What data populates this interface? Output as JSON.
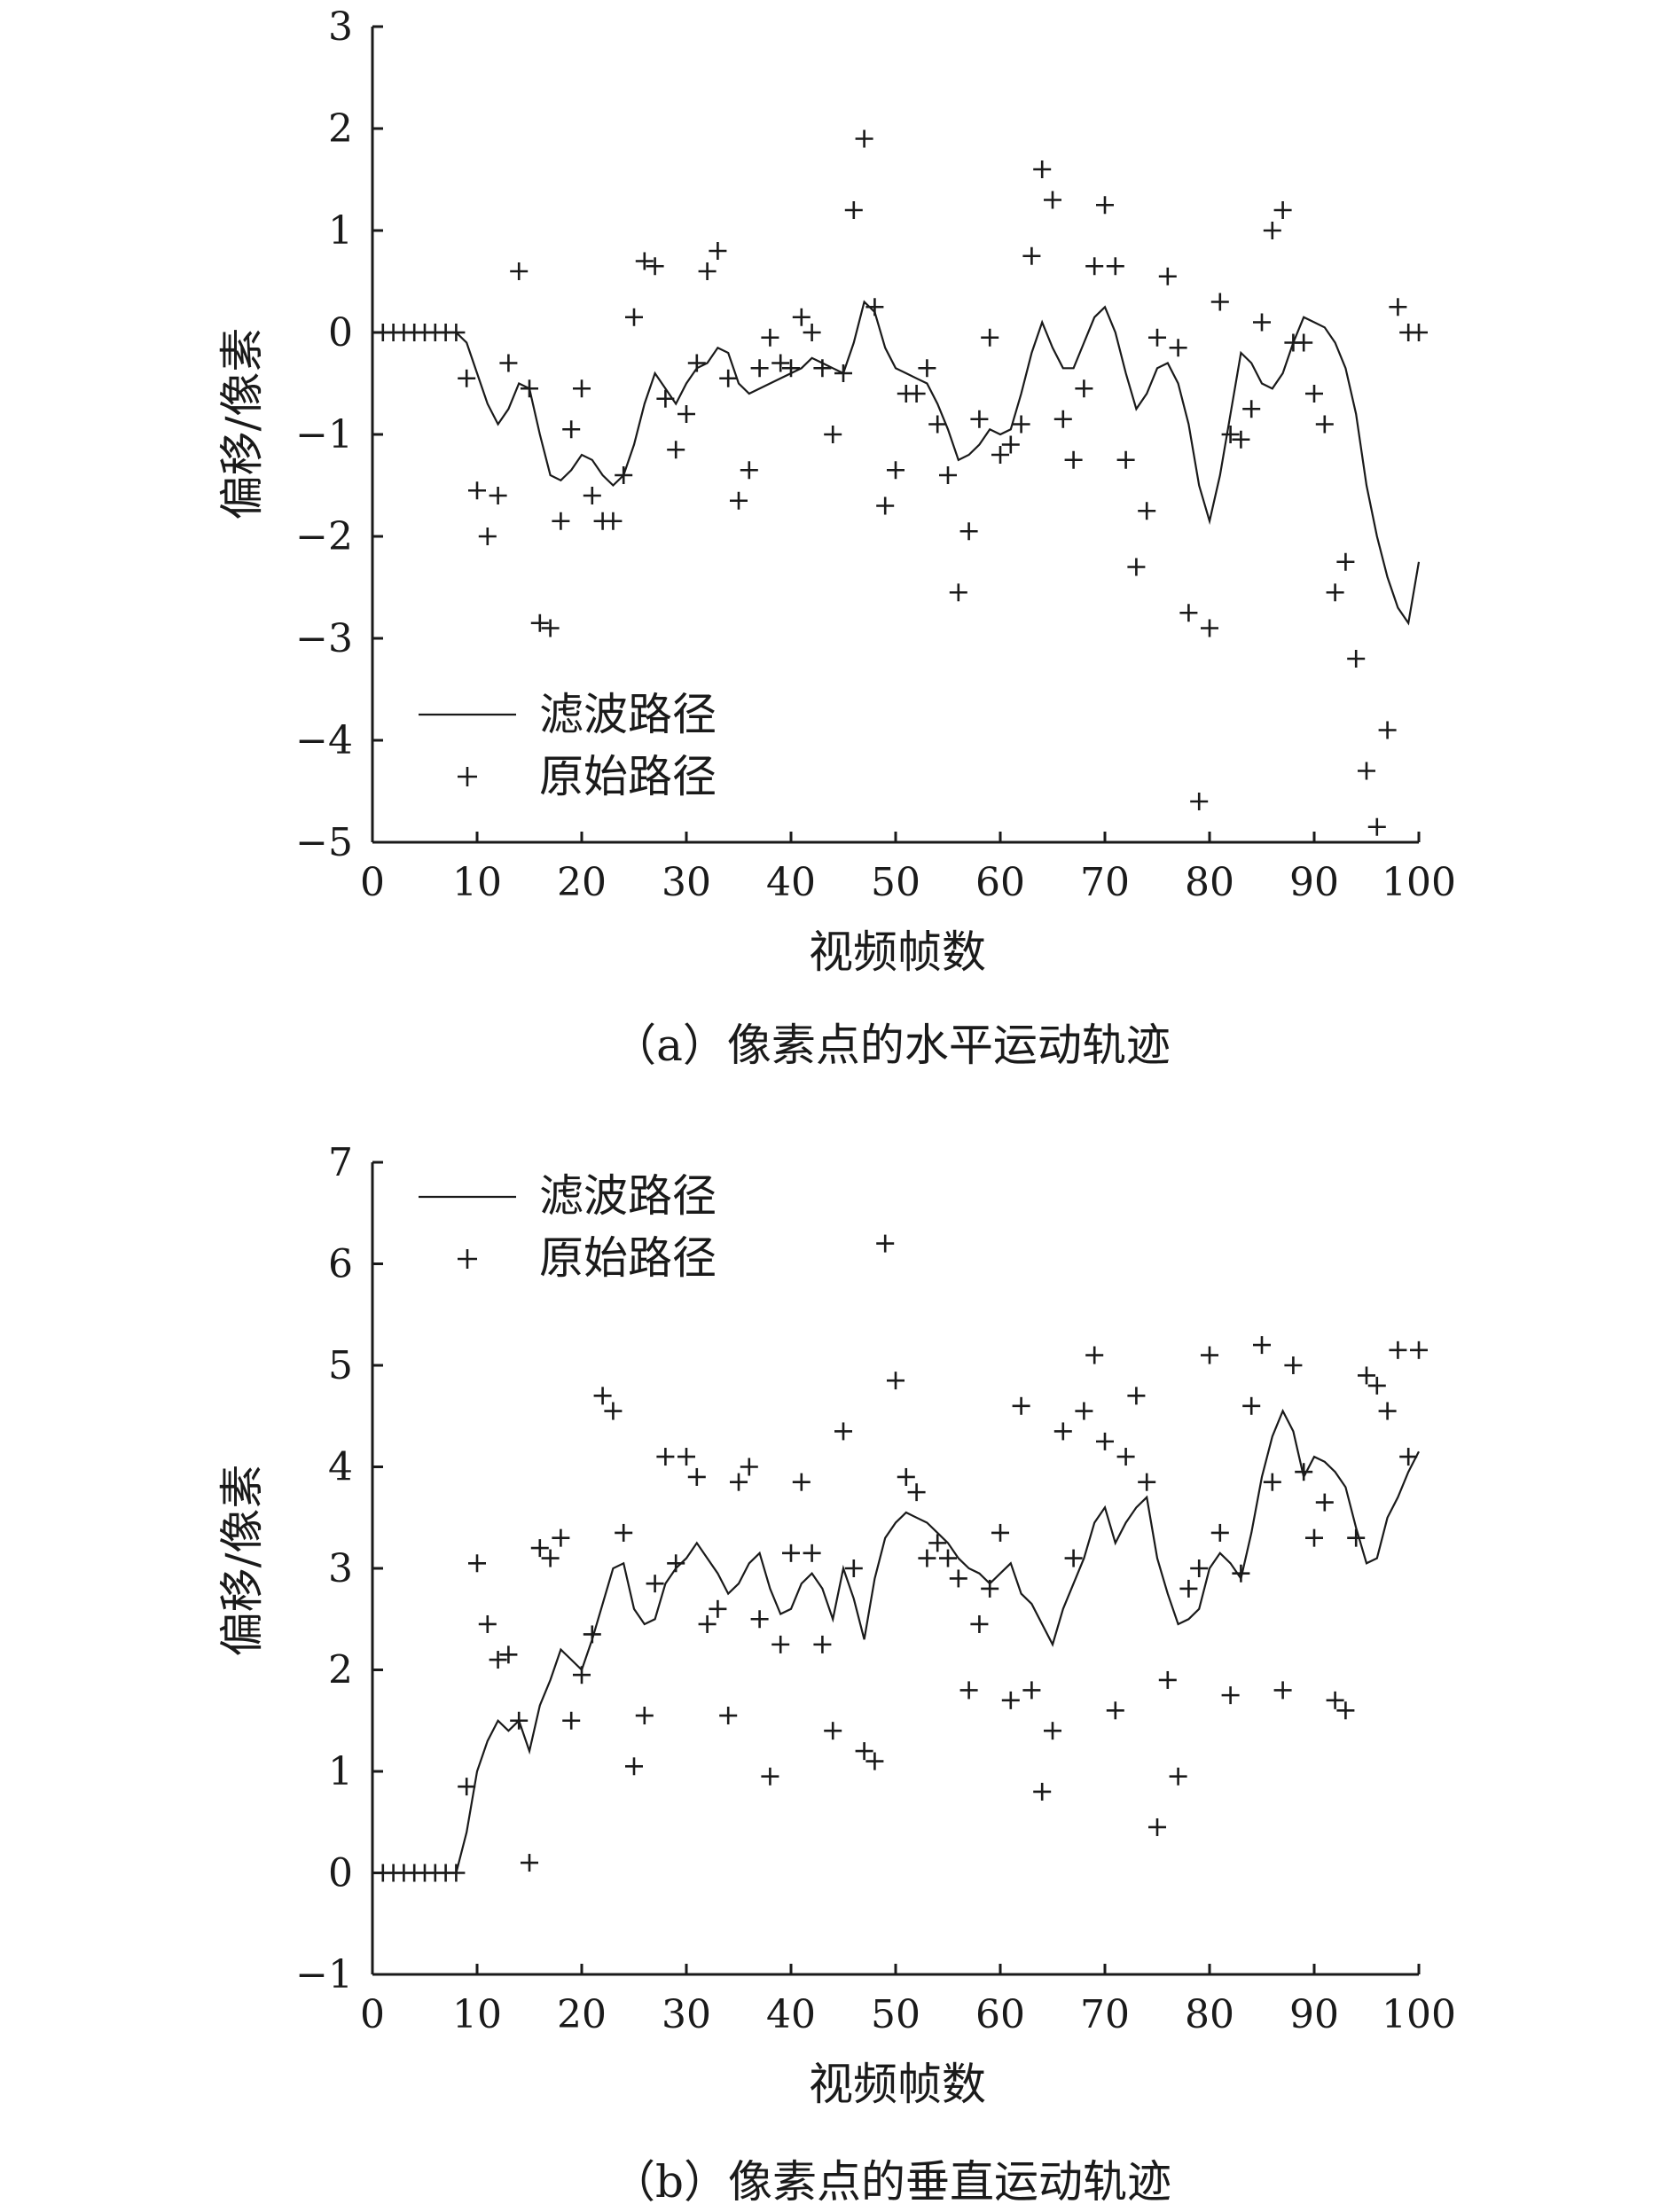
{
  "chart_data": [
    {
      "type": "line",
      "caption": "（a）像素点的水平运动轨迹",
      "xlabel": "视频帧数",
      "ylabel": "偏移/像素",
      "xlim": [
        0,
        100
      ],
      "ylim": [
        -5,
        3
      ],
      "xticks": [
        "0",
        "10",
        "20",
        "30",
        "40",
        "50",
        "60",
        "70",
        "80",
        "90",
        "100"
      ],
      "yticks": [
        "3",
        "2",
        "1",
        "0",
        "−1",
        "−2",
        "−3",
        "−4",
        "−5"
      ],
      "legend_position": "lower-left",
      "series": [
        {
          "name": "滤波路径",
          "style": "line",
          "x": [
            0,
            8,
            9,
            10,
            11,
            12,
            13,
            14,
            15,
            16,
            17,
            18,
            19,
            20,
            21,
            22,
            23,
            24,
            25,
            26,
            27,
            28,
            29,
            30,
            31,
            32,
            33,
            34,
            35,
            36,
            37,
            38,
            39,
            40,
            41,
            42,
            43,
            44,
            45,
            46,
            47,
            48,
            49,
            50,
            51,
            52,
            53,
            54,
            55,
            56,
            57,
            58,
            59,
            60,
            61,
            62,
            63,
            64,
            65,
            66,
            67,
            68,
            69,
            70,
            71,
            72,
            73,
            74,
            75,
            76,
            77,
            78,
            79,
            80,
            81,
            82,
            83,
            84,
            85,
            86,
            87,
            88,
            89,
            90,
            91,
            92,
            93,
            94,
            95,
            96,
            97,
            98,
            99,
            100
          ],
          "y": [
            0,
            0,
            -0.1,
            -0.4,
            -0.7,
            -0.9,
            -0.75,
            -0.5,
            -0.55,
            -1.0,
            -1.4,
            -1.45,
            -1.35,
            -1.2,
            -1.25,
            -1.4,
            -1.5,
            -1.4,
            -1.1,
            -0.7,
            -0.4,
            -0.55,
            -0.7,
            -0.5,
            -0.35,
            -0.3,
            -0.15,
            -0.2,
            -0.5,
            -0.6,
            -0.55,
            -0.5,
            -0.45,
            -0.4,
            -0.35,
            -0.25,
            -0.3,
            -0.35,
            -0.4,
            -0.1,
            0.3,
            0.2,
            -0.15,
            -0.35,
            -0.4,
            -0.45,
            -0.5,
            -0.7,
            -0.95,
            -1.25,
            -1.2,
            -1.1,
            -0.95,
            -1.0,
            -0.95,
            -0.6,
            -0.2,
            0.1,
            -0.15,
            -0.35,
            -0.35,
            -0.1,
            0.15,
            0.25,
            0.0,
            -0.4,
            -0.75,
            -0.6,
            -0.35,
            -0.3,
            -0.5,
            -0.9,
            -1.5,
            -1.85,
            -1.4,
            -0.8,
            -0.2,
            -0.3,
            -0.5,
            -0.55,
            -0.4,
            -0.1,
            0.15,
            0.1,
            0.05,
            -0.1,
            -0.35,
            -0.8,
            -1.5,
            -2.0,
            -2.4,
            -2.7,
            -2.85,
            -2.25
          ]
        },
        {
          "name": "原始路径",
          "style": "marker",
          "x": [
            1,
            2,
            3,
            4,
            5,
            6,
            7,
            8,
            9,
            10,
            11,
            12,
            13,
            14,
            15,
            16,
            17,
            18,
            19,
            20,
            21,
            22,
            23,
            24,
            25,
            26,
            27,
            28,
            29,
            30,
            31,
            32,
            33,
            34,
            35,
            36,
            37,
            38,
            39,
            40,
            41,
            42,
            43,
            44,
            45,
            46,
            47,
            48,
            49,
            50,
            51,
            52,
            53,
            54,
            55,
            56,
            57,
            58,
            59,
            60,
            61,
            62,
            63,
            64,
            65,
            66,
            67,
            68,
            69,
            70,
            71,
            72,
            73,
            74,
            75,
            76,
            77,
            78,
            79,
            80,
            81,
            82,
            83,
            84,
            85,
            86,
            87,
            88,
            89,
            90,
            91,
            92,
            93,
            94,
            95,
            96,
            97,
            98,
            99,
            100
          ],
          "y": [
            0,
            0,
            0,
            0,
            0,
            0,
            0,
            0,
            -0.45,
            -1.55,
            -2.0,
            -1.6,
            -0.3,
            0.6,
            -0.55,
            -2.85,
            -2.9,
            -1.85,
            -0.95,
            -0.55,
            -1.6,
            -1.85,
            -1.85,
            -1.4,
            0.15,
            0.7,
            0.65,
            -0.65,
            -1.15,
            -0.8,
            -0.3,
            0.6,
            0.8,
            -0.45,
            -1.65,
            -1.35,
            -0.35,
            -0.05,
            -0.3,
            -0.35,
            0.15,
            0.0,
            -0.35,
            -1.0,
            -0.4,
            1.2,
            1.9,
            0.25,
            -1.7,
            -1.35,
            -0.6,
            -0.6,
            -0.35,
            -0.9,
            -1.4,
            -2.55,
            -1.95,
            -0.85,
            -0.05,
            -1.2,
            -1.1,
            -0.9,
            0.75,
            1.6,
            1.3,
            -0.85,
            -1.25,
            -0.55,
            0.65,
            1.25,
            0.65,
            -1.25,
            -2.3,
            -1.75,
            -0.05,
            0.55,
            -0.15,
            -2.75,
            -4.6,
            -2.9,
            0.3,
            -1.0,
            -1.05,
            -0.75,
            0.1,
            1.0,
            1.2,
            -0.1,
            -0.1,
            -0.6,
            -0.9,
            -2.55,
            -2.25,
            -3.2,
            -4.3,
            -4.85,
            -3.9,
            0.25,
            0.0,
            0.0
          ]
        }
      ]
    },
    {
      "type": "line",
      "caption": "（b）像素点的垂直运动轨迹",
      "xlabel": "视频帧数",
      "ylabel": "偏移/像素",
      "xlim": [
        0,
        100
      ],
      "ylim": [
        -1,
        7
      ],
      "xticks": [
        "0",
        "10",
        "20",
        "30",
        "40",
        "50",
        "60",
        "70",
        "80",
        "90",
        "100"
      ],
      "yticks": [
        "7",
        "6",
        "5",
        "4",
        "3",
        "2",
        "1",
        "0",
        "−1"
      ],
      "legend_position": "top-left",
      "series": [
        {
          "name": "滤波路径",
          "style": "line",
          "x": [
            0,
            8,
            9,
            10,
            11,
            12,
            13,
            14,
            15,
            16,
            17,
            18,
            19,
            20,
            21,
            22,
            23,
            24,
            25,
            26,
            27,
            28,
            29,
            30,
            31,
            32,
            33,
            34,
            35,
            36,
            37,
            38,
            39,
            40,
            41,
            42,
            43,
            44,
            45,
            46,
            47,
            48,
            49,
            50,
            51,
            52,
            53,
            54,
            55,
            56,
            57,
            58,
            59,
            60,
            61,
            62,
            63,
            64,
            65,
            66,
            67,
            68,
            69,
            70,
            71,
            72,
            73,
            74,
            75,
            76,
            77,
            78,
            79,
            80,
            81,
            82,
            83,
            84,
            85,
            86,
            87,
            88,
            89,
            90,
            91,
            92,
            93,
            94,
            95,
            96,
            97,
            98,
            99,
            100
          ],
          "y": [
            0,
            0,
            0.4,
            1.0,
            1.3,
            1.5,
            1.4,
            1.5,
            1.2,
            1.65,
            1.9,
            2.2,
            2.1,
            2.0,
            2.3,
            2.65,
            3.0,
            3.05,
            2.6,
            2.45,
            2.5,
            2.85,
            3.0,
            3.1,
            3.25,
            3.1,
            2.95,
            2.75,
            2.85,
            3.05,
            3.15,
            2.8,
            2.55,
            2.6,
            2.85,
            2.95,
            2.8,
            2.5,
            3.0,
            2.7,
            2.3,
            2.9,
            3.3,
            3.45,
            3.55,
            3.5,
            3.45,
            3.35,
            3.25,
            3.1,
            3.0,
            2.95,
            2.85,
            2.95,
            3.05,
            2.75,
            2.65,
            2.45,
            2.25,
            2.6,
            2.85,
            3.1,
            3.45,
            3.6,
            3.25,
            3.45,
            3.6,
            3.7,
            3.1,
            2.75,
            2.45,
            2.5,
            2.6,
            3.0,
            3.15,
            3.05,
            2.9,
            3.35,
            3.9,
            4.3,
            4.55,
            4.35,
            3.9,
            4.1,
            4.05,
            3.95,
            3.8,
            3.4,
            3.05,
            3.1,
            3.5,
            3.7,
            3.95,
            4.15
          ]
        },
        {
          "name": "原始路径",
          "style": "marker",
          "x": [
            1,
            2,
            3,
            4,
            5,
            6,
            7,
            8,
            9,
            10,
            11,
            12,
            13,
            14,
            15,
            16,
            17,
            18,
            19,
            20,
            21,
            22,
            23,
            24,
            25,
            26,
            27,
            28,
            29,
            30,
            31,
            32,
            33,
            34,
            35,
            36,
            37,
            38,
            39,
            40,
            41,
            42,
            43,
            44,
            45,
            46,
            47,
            48,
            49,
            50,
            51,
            52,
            53,
            54,
            55,
            56,
            57,
            58,
            59,
            60,
            61,
            62,
            63,
            64,
            65,
            66,
            67,
            68,
            69,
            70,
            71,
            72,
            73,
            74,
            75,
            76,
            77,
            78,
            79,
            80,
            81,
            82,
            83,
            84,
            85,
            86,
            87,
            88,
            89,
            90,
            91,
            92,
            93,
            94,
            95,
            96,
            97,
            98,
            99,
            100
          ],
          "y": [
            0,
            0,
            0,
            0,
            0,
            0,
            0,
            0,
            0.85,
            3.05,
            2.45,
            2.1,
            2.15,
            1.5,
            0.1,
            3.2,
            3.1,
            3.3,
            1.5,
            1.95,
            2.35,
            4.7,
            4.55,
            3.35,
            1.05,
            1.55,
            2.85,
            4.1,
            3.05,
            4.1,
            3.9,
            2.45,
            2.6,
            1.55,
            3.85,
            4.0,
            2.5,
            0.95,
            2.25,
            3.15,
            3.85,
            3.15,
            2.25,
            1.4,
            4.35,
            3.0,
            1.2,
            1.1,
            6.2,
            4.85,
            3.9,
            3.75,
            3.1,
            3.25,
            3.1,
            2.9,
            1.8,
            2.45,
            2.8,
            3.35,
            1.7,
            4.6,
            1.8,
            0.8,
            1.4,
            4.35,
            3.1,
            4.55,
            5.1,
            4.25,
            1.6,
            4.1,
            4.7,
            3.85,
            0.45,
            1.9,
            0.95,
            2.8,
            3.0,
            5.1,
            3.35,
            1.75,
            2.95,
            4.6,
            5.2,
            3.85,
            1.8,
            5.0,
            3.95,
            3.3,
            3.65,
            1.7,
            1.6,
            3.3,
            4.9,
            4.8,
            4.55,
            5.15,
            4.1,
            5.15
          ]
        }
      ]
    }
  ]
}
